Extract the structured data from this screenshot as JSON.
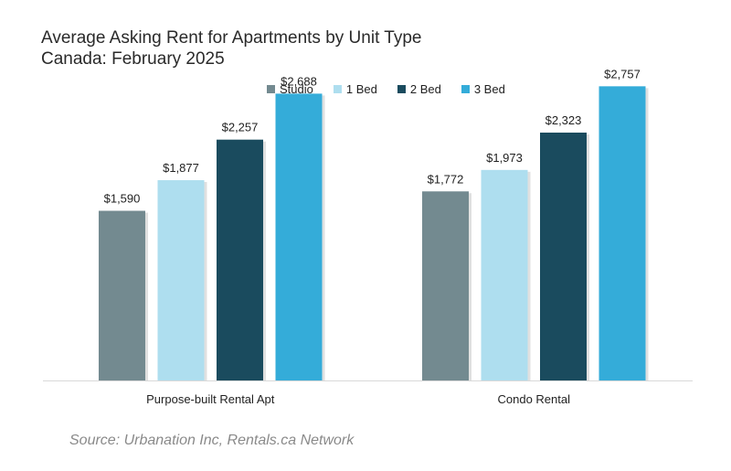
{
  "header": {
    "title_line1": "Average Asking Rent for Apartments by Unit Type",
    "title_line2": "Canada: February 2025"
  },
  "footer": {
    "source": "Source: Urbanation Inc, Rentals.ca Network"
  },
  "chart_data": {
    "type": "bar",
    "title": "Average Asking Rent for Apartments by Unit Type",
    "subtitle": "Canada: February 2025",
    "categories": [
      "Purpose-built Rental Apt",
      "Condo Rental"
    ],
    "series": [
      {
        "name": "Studio",
        "color": "#738a90",
        "values": [
          1590,
          1772
        ],
        "labels": [
          "$1,590",
          "$1,772"
        ]
      },
      {
        "name": "1 Bed",
        "color": "#aedeef",
        "values": [
          1877,
          1973
        ],
        "labels": [
          "$1,877",
          "$1,973"
        ]
      },
      {
        "name": "2 Bed",
        "color": "#1a4b5e",
        "values": [
          2257,
          2323
        ],
        "labels": [
          "$2,257",
          "$2,323"
        ]
      },
      {
        "name": "3 Bed",
        "color": "#34acd9",
        "values": [
          2688,
          2757
        ],
        "labels": [
          "$2,688",
          "$2,757"
        ]
      }
    ],
    "ylim": [
      0,
      3000
    ],
    "grid": false,
    "legend_position": "top"
  }
}
